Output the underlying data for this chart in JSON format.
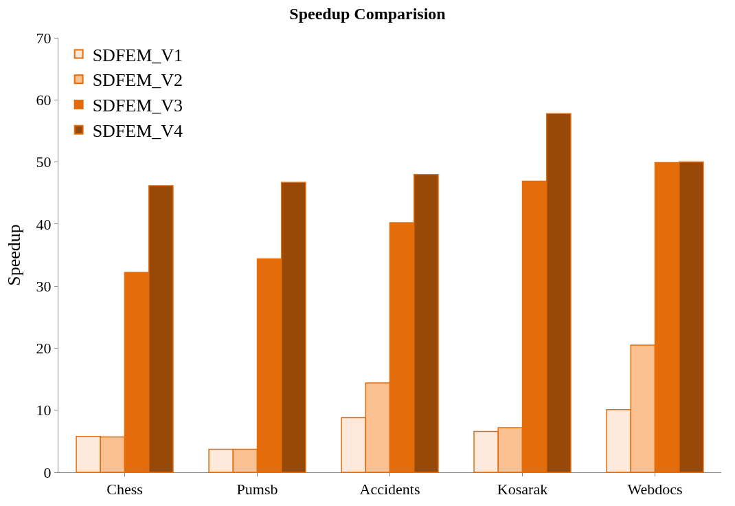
{
  "chart_data": {
    "type": "bar",
    "title": "Speedup Comparision",
    "ylabel": "Speedup",
    "categories": [
      "Chess",
      "Pumsb",
      "Accidents",
      "Kosarak",
      "Webdocs"
    ],
    "series": [
      {
        "name": "SDFEM_V1",
        "color": "#fde9d9",
        "values": [
          5.8,
          3.7,
          8.8,
          6.6,
          10.1
        ]
      },
      {
        "name": "SDFEM_V2",
        "color": "#fac090",
        "values": [
          5.7,
          3.7,
          14.4,
          7.2,
          20.5
        ]
      },
      {
        "name": "SDFEM_V3",
        "color": "#e46c0a",
        "values": [
          32.2,
          34.4,
          40.2,
          46.9,
          49.9
        ]
      },
      {
        "name": "SDFEM_V4",
        "color": "#984807",
        "values": [
          46.2,
          46.7,
          48.0,
          57.8,
          50.0
        ]
      }
    ],
    "ylim": [
      0,
      70
    ],
    "yticks": [
      0,
      10,
      20,
      30,
      40,
      50,
      60,
      70
    ],
    "legend": "top left"
  }
}
